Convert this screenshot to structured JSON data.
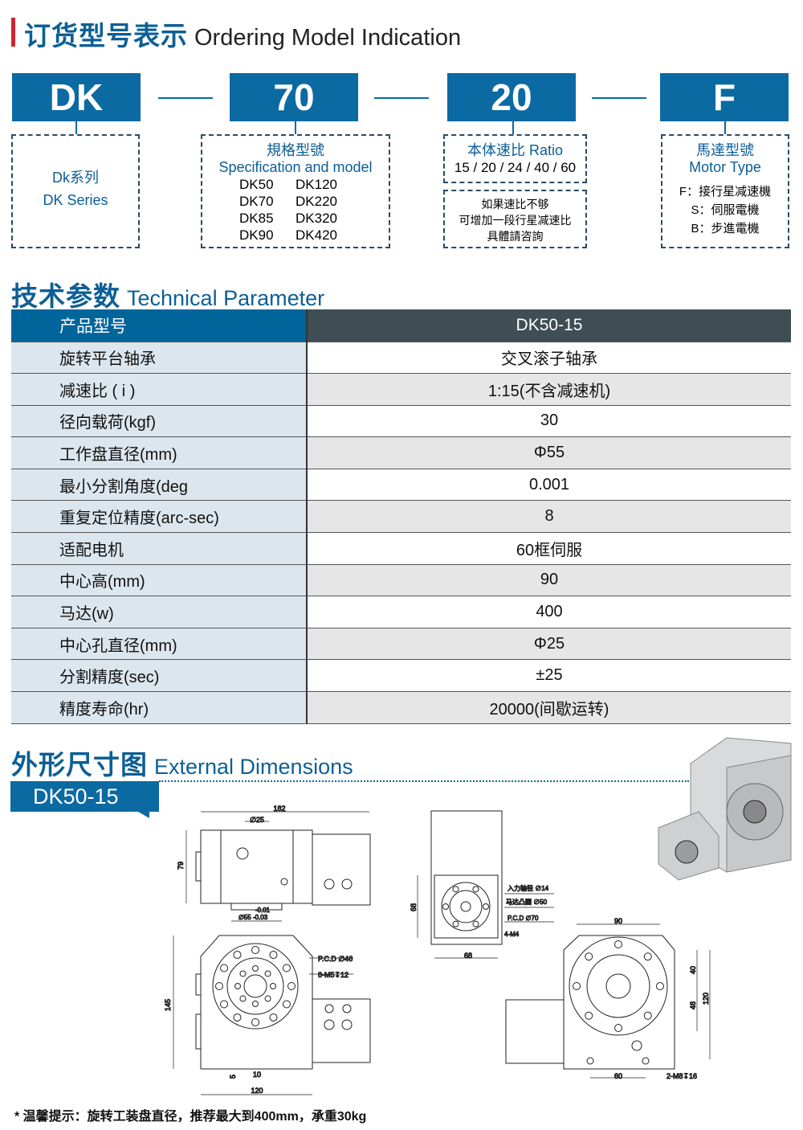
{
  "ordering": {
    "title_zh": "订货型号表示",
    "title_en": "Ordering Model Indication",
    "codes": [
      "DK",
      "70",
      "20",
      "F"
    ],
    "series": {
      "zh": "Dk系列",
      "en": "DK Series"
    },
    "spec": {
      "zh": "規格型號",
      "en": "Specification and model",
      "models": [
        "DK50",
        "DK120",
        "DK70",
        "DK220",
        "DK85",
        "DK320",
        "DK90",
        "DK420"
      ]
    },
    "ratio": {
      "title": "本体速比 Ratio",
      "values": "15 / 20 / 24 / 40 / 60",
      "note": [
        "如果速比不够",
        "可增加一段行星减速比",
        "具體請咨詢"
      ]
    },
    "motor": {
      "zh": "馬達型號",
      "en": "Motor Type",
      "options": [
        "F：接行星减速機",
        "S：伺服電機",
        "B：步進電機"
      ]
    }
  },
  "technical": {
    "title_zh": "技术参数",
    "title_en": "Technical Parameter",
    "header": [
      "产品型号",
      "DK50-15"
    ],
    "rows": [
      [
        "旋转平台轴承",
        "交叉滚子轴承"
      ],
      [
        "减速比 ( i )",
        "1:15(不含减速机)"
      ],
      [
        "径向载荷(kgf)",
        "30"
      ],
      [
        "工作盘直径(mm)",
        "Φ55"
      ],
      [
        "最小分割角度(deg",
        "0.001"
      ],
      [
        "重复定位精度(arc-sec)",
        "8"
      ],
      [
        "适配电机",
        "60框伺服"
      ],
      [
        "中心高(mm)",
        "90"
      ],
      [
        "马达(w)",
        "400"
      ],
      [
        "中心孔直径(mm)",
        "Φ25"
      ],
      [
        "分割精度(sec)",
        "±25"
      ],
      [
        "精度寿命(hr)",
        "20000(间歇运转)"
      ]
    ]
  },
  "dimensions": {
    "title_zh": "外形尺寸图",
    "title_en": "External Dimensions",
    "model_tag": "DK50-15",
    "labels": {
      "d182": "182",
      "d25": "∅25",
      "d79": "79",
      "tol_up": "-0.01",
      "d55": "∅55 -0.03",
      "d145": "145",
      "pcd46": "P.C.D ∅46",
      "m5": "8-M5↧12",
      "d5": "5",
      "d10": "10",
      "d120": "120",
      "d68v": "68",
      "d68h": "68",
      "shaft": "入力轴径 ∅14",
      "boss": "马达凸圆 ∅50",
      "pcd70": "P.C.D ∅70",
      "m4": "4-M4",
      "d90": "90",
      "d40": "40",
      "d48": "48",
      "d120r": "120",
      "d60": "60",
      "m8": "2-M8↧16"
    }
  },
  "footnote": "* 温馨提示：旋转工装盘直径，推荐最大到400mm，承重30kg",
  "colors": {
    "brand_blue": "#0b6aa2",
    "header_dark": "#3f4d55",
    "row_label_bg": "#dce6ee"
  }
}
